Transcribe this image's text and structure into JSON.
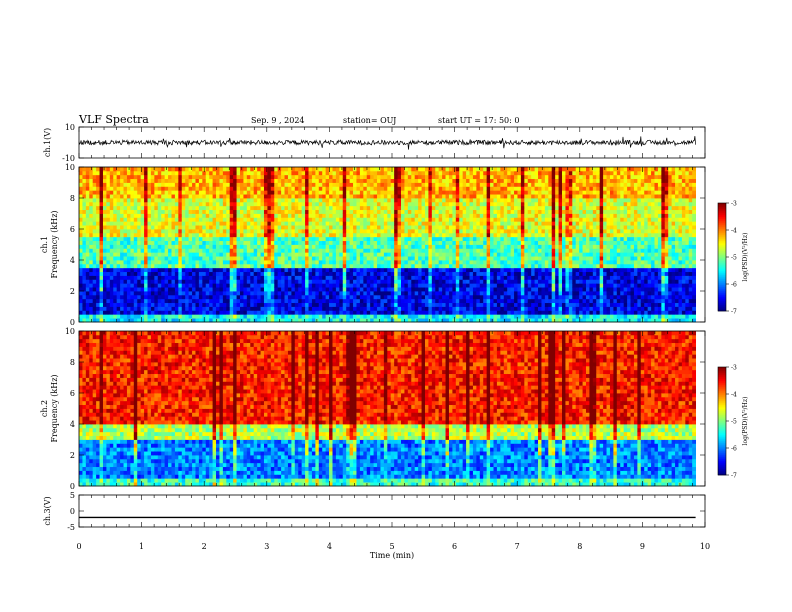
{
  "header": {
    "title": "VLF Spectra",
    "date": "Sep. 9 , 2024",
    "station": "station= OUJ",
    "start": "start UT =  17: 50: 0"
  },
  "chart_data": [
    {
      "type": "line",
      "panel": "ch1-waveform",
      "ylabel": "ch.1(V)",
      "ylim": [
        -10,
        10
      ],
      "yticks": [
        "10",
        "-10"
      ],
      "xlim": [
        0,
        10
      ],
      "baseline": 0,
      "description_values": {
        "typical_amplitude": 1.5
      }
    },
    {
      "type": "heatmap",
      "panel": "ch1-spectrogram",
      "ylabel": "ch.1\nFrequency (kHz)",
      "ylabel_line1": "ch.1",
      "ylabel_line2": "Frequency (kHz)",
      "ylim": [
        0,
        10
      ],
      "yticks": [
        "0",
        "2",
        "4",
        "6",
        "8",
        "10"
      ],
      "xlim": [
        0,
        9.85
      ],
      "colorbar": {
        "label": "log(PSD)(V²/Hz)",
        "ticks": [
          "-3",
          "-4",
          "-5",
          "-6",
          "-7"
        ],
        "range": [
          -7,
          -3
        ]
      },
      "bands": [
        {
          "fmin": 0,
          "fmax": 0.5,
          "logpsd": -5.5
        },
        {
          "fmin": 0.5,
          "fmax": 3.5,
          "logpsd": -6.6
        },
        {
          "fmin": 3.5,
          "fmax": 5.5,
          "logpsd": -5.2
        },
        {
          "fmin": 5.5,
          "fmax": 8.0,
          "logpsd": -4.6
        },
        {
          "fmin": 8.0,
          "fmax": 10,
          "logpsd": -4.2
        }
      ]
    },
    {
      "type": "heatmap",
      "panel": "ch2-spectrogram",
      "ylabel": "ch.2\nFrequency (kHz)",
      "ylabel_line1": "ch.2",
      "ylabel_line2": "Frequency (kHz)",
      "ylim": [
        0,
        10
      ],
      "yticks": [
        "0",
        "2",
        "4",
        "6",
        "8",
        "10"
      ],
      "xlim": [
        0,
        9.85
      ],
      "colorbar": {
        "label": "log(PSD)(V²/Hz)",
        "ticks": [
          "-3",
          "-4",
          "-5",
          "-6",
          "-7"
        ],
        "range": [
          -7,
          -3
        ]
      },
      "bands": [
        {
          "fmin": 0,
          "fmax": 0.5,
          "logpsd": -5.3
        },
        {
          "fmin": 0.5,
          "fmax": 3.0,
          "logpsd": -6.0
        },
        {
          "fmin": 3.0,
          "fmax": 4.0,
          "logpsd": -4.8
        },
        {
          "fmin": 4.0,
          "fmax": 10,
          "logpsd": -3.6
        }
      ]
    },
    {
      "type": "line",
      "panel": "ch3-waveform",
      "ylabel": "ch.3(V)",
      "ylim": [
        -5,
        5
      ],
      "yticks": [
        "5",
        "0",
        "-5"
      ],
      "xlim": [
        0,
        9.85
      ],
      "x": [
        0,
        9.85
      ],
      "y": [
        -2,
        -2
      ]
    }
  ],
  "xaxis": {
    "label": "Time  (min)",
    "ticks": [
      "0",
      "1",
      "2",
      "3",
      "4",
      "5",
      "6",
      "7",
      "8",
      "9",
      "10"
    ],
    "range": [
      0,
      10
    ]
  }
}
